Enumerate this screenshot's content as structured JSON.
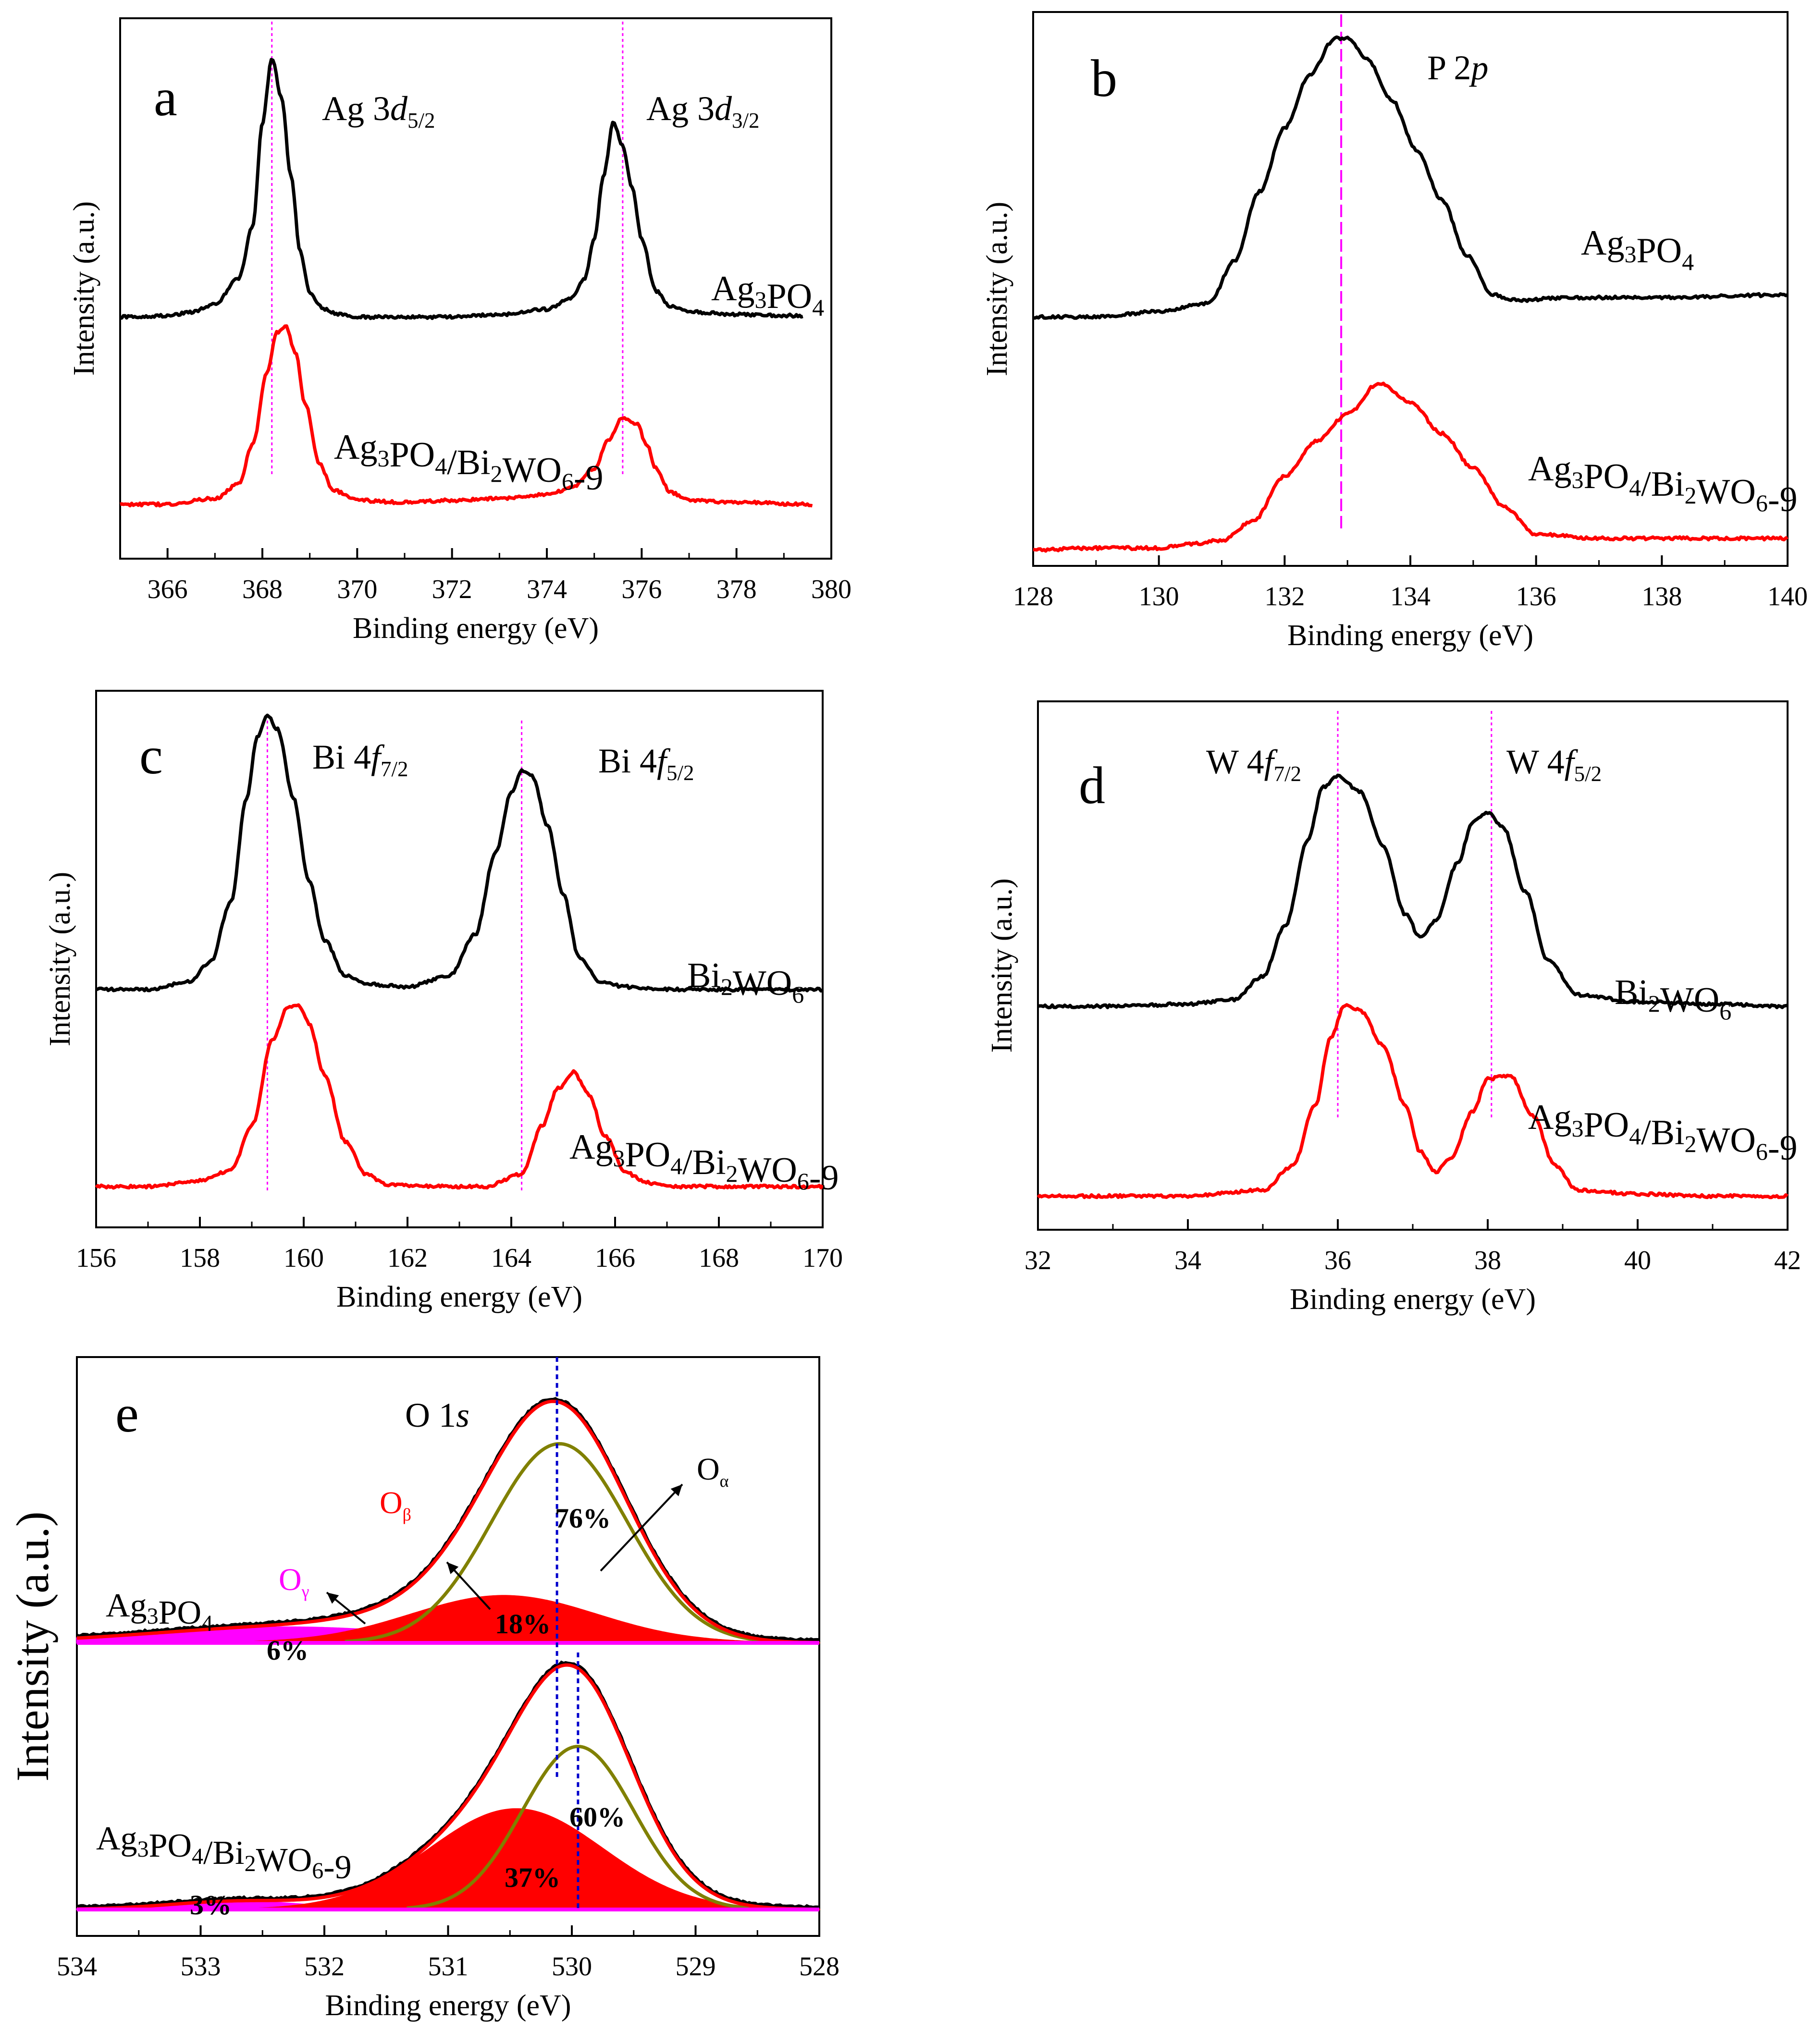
{
  "figure": {
    "colors": {
      "black": "#000000",
      "red": "#ff0000",
      "magenta_line": "#ff00ff",
      "blue_line": "#0000cc",
      "olive": "#808000",
      "fill_red": "#ff0000",
      "fill_magenta": "#ff00ff"
    }
  },
  "chart_data": [
    {
      "id": "a",
      "type": "line",
      "panel_label": "a",
      "xlabel": "Binding energy (eV)",
      "ylabel": "Intensity (a.u.)",
      "xlim": [
        365,
        380
      ],
      "x_ticks": [
        "366",
        "368",
        "370",
        "372",
        "374",
        "376",
        "378",
        "380"
      ],
      "y_ticks": [],
      "reference_lines": [
        368.2,
        375.6
      ],
      "peaks": [
        {
          "label": "Ag 3d",
          "sub": "5/2"
        },
        {
          "label": "Ag 3d",
          "sub": "3/2"
        }
      ],
      "series": [
        {
          "name": "Ag3PO4",
          "label_parts": [
            [
              "Ag",
              ""
            ],
            [
              "3",
              "sub"
            ],
            [
              "PO",
              ""
            ],
            [
              "4",
              "sub"
            ]
          ],
          "color": "black",
          "x": [
            365.0,
            366.0,
            366.5,
            367.0,
            367.5,
            367.8,
            368.0,
            368.2,
            368.4,
            368.6,
            368.8,
            369.0,
            369.3,
            369.6,
            370.0,
            371.0,
            372.0,
            373.0,
            374.0,
            374.5,
            374.8,
            375.0,
            375.2,
            375.4,
            375.6,
            375.8,
            376.0,
            376.3,
            376.6,
            377.0,
            378.0,
            379.4
          ],
          "y": [
            0,
            0.005,
            0.02,
            0.05,
            0.15,
            0.35,
            0.75,
            1.0,
            0.85,
            0.55,
            0.25,
            0.09,
            0.03,
            0.01,
            0,
            0.0,
            0.0,
            0.01,
            0.03,
            0.07,
            0.15,
            0.3,
            0.55,
            0.75,
            0.66,
            0.5,
            0.3,
            0.1,
            0.04,
            0.02,
            0.01,
            0.005
          ]
        },
        {
          "name": "Ag3PO4/Bi2WO6-9",
          "label_parts": [
            [
              "Ag",
              ""
            ],
            [
              "3",
              "sub"
            ],
            [
              "PO",
              ""
            ],
            [
              "4",
              "sub"
            ],
            [
              "/Bi",
              ""
            ],
            [
              "2",
              "sub"
            ],
            [
              "WO",
              ""
            ],
            [
              "6",
              "sub"
            ],
            [
              "-9",
              ""
            ]
          ],
          "color": "red",
          "x": [
            365.0,
            366.0,
            367.0,
            367.5,
            367.8,
            368.1,
            368.3,
            368.5,
            368.7,
            368.9,
            369.2,
            369.5,
            370.0,
            371.0,
            372.0,
            373.0,
            374.0,
            374.5,
            375.0,
            375.3,
            375.6,
            375.9,
            376.1,
            376.3,
            376.6,
            377.0,
            378.0,
            379.6
          ],
          "y": [
            0,
            0.0,
            0.03,
            0.1,
            0.3,
            0.65,
            0.85,
            0.88,
            0.75,
            0.5,
            0.2,
            0.07,
            0.02,
            0.01,
            0.02,
            0.03,
            0.05,
            0.08,
            0.18,
            0.32,
            0.43,
            0.4,
            0.3,
            0.18,
            0.06,
            0.02,
            0.01,
            0.0
          ]
        }
      ]
    },
    {
      "id": "b",
      "type": "line",
      "panel_label": "b",
      "xlabel": "Binding energy (eV)",
      "ylabel": "Intensity (a.u.)",
      "xlim": [
        128,
        140
      ],
      "x_ticks": [
        "128",
        "130",
        "132",
        "134",
        "136",
        "138",
        "140"
      ],
      "y_ticks": [],
      "reference_lines": [
        132.9
      ],
      "reference_dashed": true,
      "peaks": [
        {
          "label": "P 2p",
          "sub": ""
        }
      ],
      "series": [
        {
          "name": "Ag3PO4",
          "label_parts": [
            [
              "Ag",
              ""
            ],
            [
              "3",
              "sub"
            ],
            [
              "PO",
              ""
            ],
            [
              "4",
              "sub"
            ]
          ],
          "color": "black",
          "x": [
            128.0,
            129.0,
            130.0,
            130.8,
            131.2,
            131.6,
            132.0,
            132.4,
            132.8,
            133.0,
            133.3,
            133.7,
            134.1,
            134.5,
            134.9,
            135.3,
            135.7,
            136.5,
            138.0,
            140.0
          ],
          "y": [
            0,
            0.0,
            0.02,
            0.05,
            0.2,
            0.45,
            0.68,
            0.87,
            1.0,
            1.0,
            0.93,
            0.78,
            0.6,
            0.42,
            0.22,
            0.08,
            0.06,
            0.07,
            0.07,
            0.08
          ]
        },
        {
          "name": "Ag3PO4/Bi2WO6-9",
          "label_parts": [
            [
              "Ag",
              ""
            ],
            [
              "3",
              "sub"
            ],
            [
              "PO",
              ""
            ],
            [
              "4",
              "sub"
            ],
            [
              "/Bi",
              ""
            ],
            [
              "2",
              "sub"
            ],
            [
              "WO",
              ""
            ],
            [
              "6",
              "sub"
            ],
            [
              "-9",
              ""
            ]
          ],
          "color": "red",
          "x": [
            128.0,
            129.0,
            130.0,
            130.5,
            131.0,
            131.5,
            132.0,
            132.5,
            133.0,
            133.5,
            134.0,
            134.5,
            135.0,
            135.5,
            136.0,
            137.0,
            138.0,
            139.0,
            140.0
          ],
          "y": [
            0,
            0.01,
            0.01,
            0.03,
            0.05,
            0.15,
            0.38,
            0.56,
            0.7,
            0.86,
            0.76,
            0.6,
            0.42,
            0.22,
            0.08,
            0.06,
            0.06,
            0.06,
            0.06
          ]
        }
      ]
    },
    {
      "id": "c",
      "type": "line",
      "panel_label": "c",
      "xlabel": "Binding energy (eV)",
      "ylabel": "Intensity (a.u.)",
      "xlim": [
        156,
        170
      ],
      "x_ticks": [
        "156",
        "158",
        "160",
        "162",
        "164",
        "166",
        "168",
        "170"
      ],
      "y_ticks": [],
      "reference_lines": [
        159.3,
        164.2
      ],
      "peaks": [
        {
          "label": "Bi 4f",
          "sub": "7/2"
        },
        {
          "label": "Bi 4f",
          "sub": "5/2"
        }
      ],
      "series": [
        {
          "name": "Bi2WO6",
          "label_parts": [
            [
              "Bi",
              ""
            ],
            [
              "2",
              "sub"
            ],
            [
              "WO",
              ""
            ],
            [
              "6",
              "sub"
            ]
          ],
          "color": "black",
          "x": [
            156.0,
            157.0,
            157.8,
            158.2,
            158.6,
            158.9,
            159.1,
            159.3,
            159.5,
            159.8,
            160.1,
            160.4,
            160.8,
            161.2,
            162.0,
            162.8,
            163.3,
            163.7,
            164.0,
            164.2,
            164.4,
            164.7,
            165.0,
            165.3,
            165.7,
            166.2,
            167.0,
            170.0
          ],
          "y": [
            0,
            0.0,
            0.03,
            0.1,
            0.32,
            0.7,
            0.92,
            1.0,
            0.95,
            0.7,
            0.4,
            0.18,
            0.05,
            0.02,
            0.01,
            0.05,
            0.2,
            0.5,
            0.72,
            0.8,
            0.78,
            0.6,
            0.35,
            0.12,
            0.03,
            0.01,
            0.0,
            0.0
          ]
        },
        {
          "name": "Ag3PO4/Bi2WO6-9",
          "label_parts": [
            [
              "Ag",
              ""
            ],
            [
              "3",
              "sub"
            ],
            [
              "PO",
              ""
            ],
            [
              "4",
              "sub"
            ],
            [
              "/Bi",
              ""
            ],
            [
              "2",
              "sub"
            ],
            [
              "WO",
              ""
            ],
            [
              "6",
              "sub"
            ],
            [
              "-9",
              ""
            ]
          ],
          "color": "red",
          "x": [
            156.0,
            157.0,
            158.0,
            158.6,
            159.0,
            159.4,
            159.7,
            159.9,
            160.1,
            160.4,
            160.8,
            161.2,
            161.6,
            162.5,
            163.5,
            164.2,
            164.6,
            164.9,
            165.2,
            165.5,
            165.8,
            166.2,
            166.6,
            167.0,
            168.0,
            170.0
          ],
          "y": [
            0,
            0.0,
            0.03,
            0.08,
            0.3,
            0.72,
            0.88,
            0.89,
            0.8,
            0.55,
            0.22,
            0.06,
            0.01,
            0.0,
            0.0,
            0.06,
            0.3,
            0.48,
            0.56,
            0.45,
            0.25,
            0.07,
            0.02,
            0.0,
            0.0,
            0.0
          ]
        }
      ]
    },
    {
      "id": "d",
      "type": "line",
      "panel_label": "d",
      "xlabel": "Binding energy (eV)",
      "ylabel": "Intensity (a.u.)",
      "xlim": [
        32,
        42
      ],
      "x_ticks": [
        "32",
        "34",
        "36",
        "38",
        "40",
        "42"
      ],
      "y_ticks": [],
      "reference_lines": [
        36.0,
        38.05
      ],
      "peaks": [
        {
          "label": "W 4f",
          "sub": "7/2"
        },
        {
          "label": "W 4f",
          "sub": "5/2"
        }
      ],
      "series": [
        {
          "name": "Bi2WO6",
          "label_parts": [
            [
              "Bi",
              ""
            ],
            [
              "2",
              "sub"
            ],
            [
              "WO",
              ""
            ],
            [
              "6",
              "sub"
            ]
          ],
          "color": "black",
          "x": [
            32.0,
            33.0,
            34.0,
            34.6,
            35.0,
            35.3,
            35.6,
            35.8,
            36.0,
            36.3,
            36.6,
            36.9,
            37.1,
            37.3,
            37.6,
            37.8,
            38.0,
            38.2,
            38.5,
            38.8,
            39.2,
            40.0,
            41.0,
            42.0
          ],
          "y": [
            0,
            0.0,
            0.01,
            0.03,
            0.13,
            0.35,
            0.72,
            0.95,
            1.0,
            0.93,
            0.7,
            0.4,
            0.3,
            0.37,
            0.62,
            0.8,
            0.84,
            0.78,
            0.5,
            0.2,
            0.05,
            0.02,
            0.01,
            0.0
          ]
        },
        {
          "name": "Ag3PO4/Bi2WO6-9",
          "label_parts": [
            [
              "Ag",
              ""
            ],
            [
              "3",
              "sub"
            ],
            [
              "PO",
              ""
            ],
            [
              "4",
              "sub"
            ],
            [
              "/Bi",
              ""
            ],
            [
              "2",
              "sub"
            ],
            [
              "WO",
              ""
            ],
            [
              "6",
              "sub"
            ],
            [
              "-9",
              ""
            ]
          ],
          "color": "red",
          "x": [
            32.0,
            33.0,
            34.0,
            35.0,
            35.4,
            35.7,
            35.9,
            36.1,
            36.3,
            36.6,
            36.9,
            37.1,
            37.3,
            37.5,
            37.8,
            38.0,
            38.3,
            38.6,
            38.9,
            39.2,
            40.0,
            41.0,
            42.0
          ],
          "y": [
            0,
            0.0,
            0.0,
            0.03,
            0.15,
            0.45,
            0.78,
            0.95,
            0.92,
            0.75,
            0.45,
            0.22,
            0.12,
            0.18,
            0.42,
            0.58,
            0.6,
            0.4,
            0.15,
            0.03,
            0.01,
            0.0,
            0.0
          ]
        }
      ]
    },
    {
      "id": "e",
      "type": "area",
      "panel_label": "e",
      "xlabel": "Binding energy (eV)",
      "ylabel": "Intensity (a.u.)",
      "xlim": [
        534,
        528
      ],
      "x_ticks": [
        "534",
        "533",
        "532",
        "531",
        "530",
        "529",
        "528"
      ],
      "y_ticks": [],
      "reference_lines": [
        530.12,
        529.95
      ],
      "peak_label": {
        "main": "O 1",
        "italic": "s"
      },
      "component_labels": [
        {
          "symbol": "O",
          "sub": "β",
          "color": "red"
        },
        {
          "symbol": "O",
          "sub": "γ",
          "color": "magenta"
        },
        {
          "symbol": "O",
          "sub": "α",
          "color": "black"
        }
      ],
      "series": [
        {
          "name": "Ag3PO4",
          "label_parts": [
            [
              "Ag",
              ""
            ],
            [
              "3",
              "sub"
            ],
            [
              "PO",
              ""
            ],
            [
              "4",
              "sub"
            ]
          ],
          "components": [
            {
              "name": "Oα",
              "center": 530.1,
              "sigma": 0.55,
              "amplitude": 0.76,
              "color": "olive",
              "percent": "76%"
            },
            {
              "name": "Oβ",
              "center": 530.55,
              "sigma": 0.75,
              "amplitude": 0.18,
              "color": "red",
              "percent": "18%"
            },
            {
              "name": "Oγ",
              "center": 532.3,
              "sigma": 1.1,
              "amplitude": 0.06,
              "color": "magenta",
              "percent": "6%"
            }
          ]
        },
        {
          "name": "Ag3PO4/Bi2WO6-9",
          "label_parts": [
            [
              "Ag",
              ""
            ],
            [
              "3",
              "sub"
            ],
            [
              "PO",
              ""
            ],
            [
              "4",
              "sub"
            ],
            [
              "/Bi",
              ""
            ],
            [
              "2",
              "sub"
            ],
            [
              "WO",
              ""
            ],
            [
              "6",
              "sub"
            ],
            [
              "-9",
              ""
            ]
          ],
          "components": [
            {
              "name": "Oα",
              "center": 529.95,
              "sigma": 0.45,
              "amplitude": 0.6,
              "color": "olive",
              "percent": "60%"
            },
            {
              "name": "Oβ",
              "center": 530.45,
              "sigma": 0.7,
              "amplitude": 0.37,
              "color": "red",
              "percent": "37%"
            },
            {
              "name": "Oγ",
              "center": 532.7,
              "sigma": 0.55,
              "amplitude": 0.03,
              "color": "magenta",
              "percent": "3%"
            }
          ]
        }
      ]
    }
  ]
}
